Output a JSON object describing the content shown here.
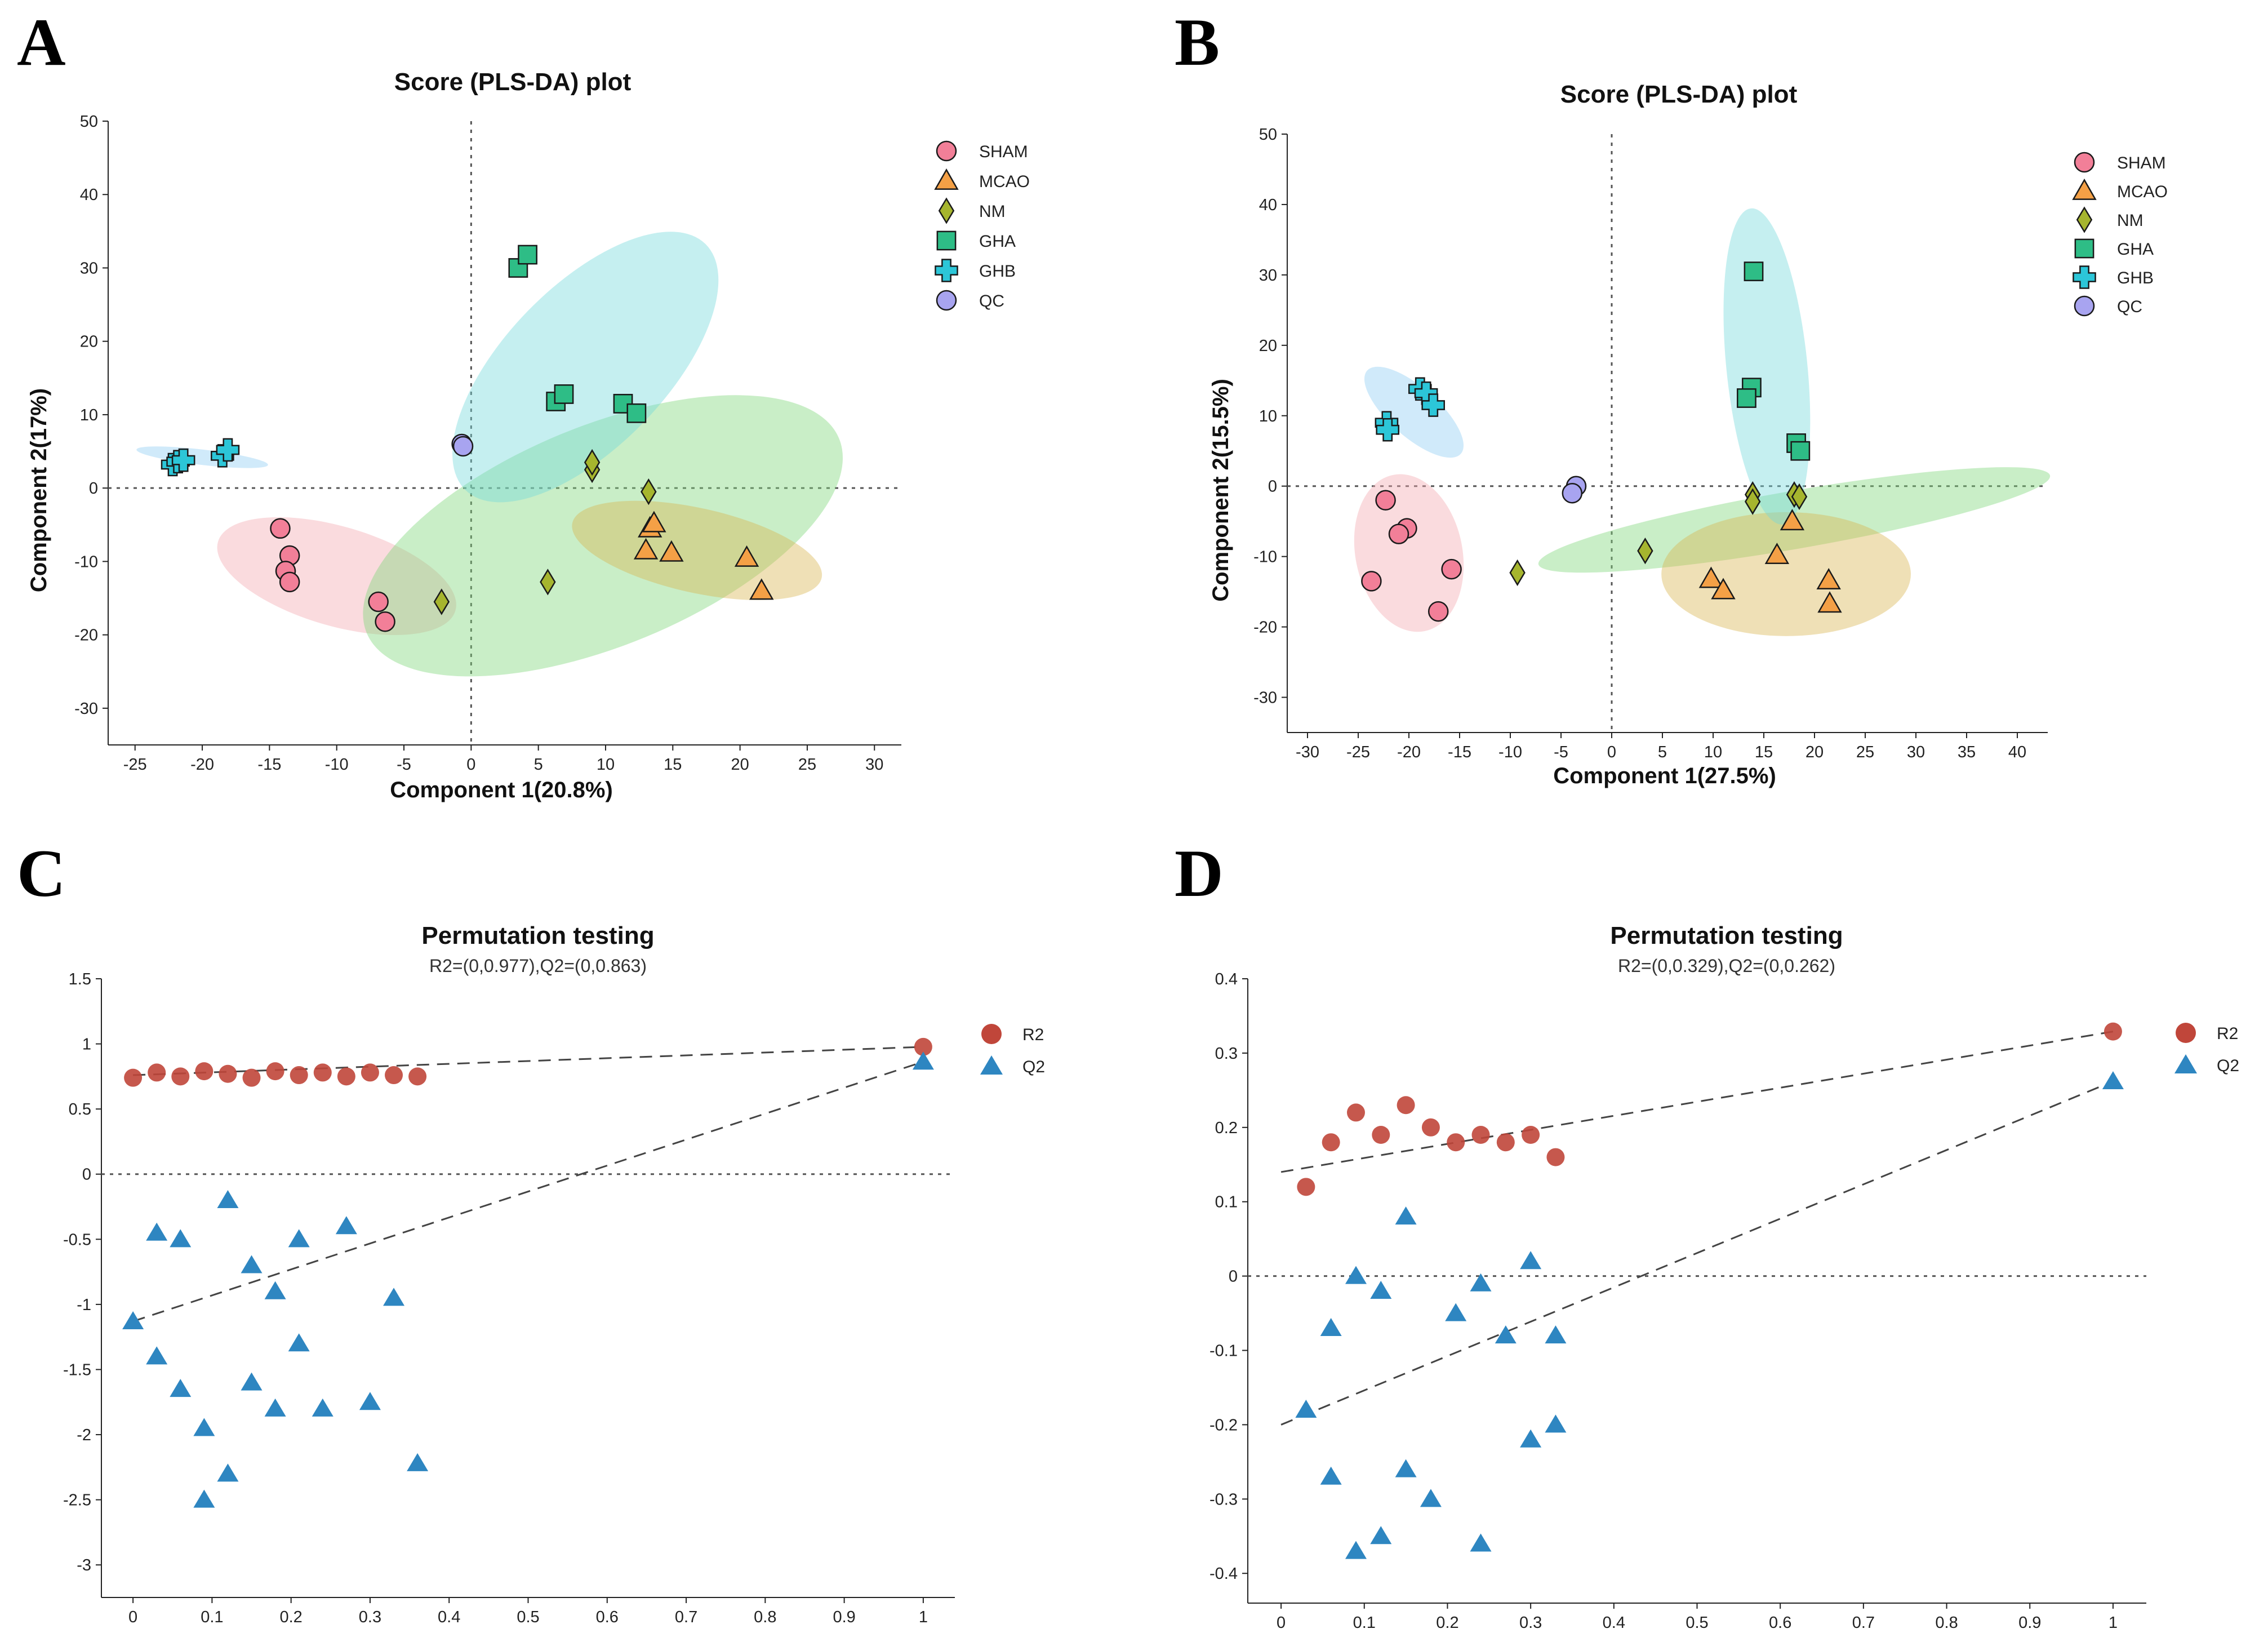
{
  "panels": {
    "A": "A",
    "B": "B",
    "C": "C",
    "D": "D"
  },
  "colors": {
    "SHAM": "#f27f98",
    "MCAO": "#f4a046",
    "NM": "#a6b52e",
    "GHA": "#2ebd86",
    "GHB": "#2cc6d8",
    "QC": "#a8a4f0",
    "ellipse_SHAM": "#f4a9b1",
    "ellipse_MCAO": "#d9b652",
    "ellipse_NM": "#7fd67a",
    "ellipse_GHA": "#74d8dc",
    "ellipse_GHB": "#8fcdf2",
    "R2": "#c0463a",
    "Q2": "#2e86c1"
  },
  "chart_data": [
    {
      "id": "A",
      "type": "scatter",
      "title": "Score (PLS-DA) plot",
      "xlabel": "Component 1(20.8%)",
      "ylabel": "Component 2(17%)",
      "xlim": [
        -27,
        32
      ],
      "ylim": [
        -35,
        50
      ],
      "xticks": [
        -25,
        -20,
        -15,
        -10,
        -5,
        0,
        5,
        10,
        15,
        20,
        25,
        30
      ],
      "yticks": [
        -30,
        -20,
        -10,
        0,
        10,
        20,
        30,
        40,
        50
      ],
      "legend": [
        "SHAM",
        "MCAO",
        "NM",
        "GHA",
        "GHB",
        "QC"
      ],
      "ellipses": [
        {
          "group": "SHAM",
          "cx": -10.0,
          "cy": -12.0,
          "rx": 10.0,
          "ry": 5.5,
          "angle": -28
        },
        {
          "group": "NM",
          "cx": 9.8,
          "cy": -6.5,
          "rx": 22.0,
          "ry": 11.0,
          "angle": 37
        },
        {
          "group": "MCAO",
          "cx": 16.8,
          "cy": -8.5,
          "rx": 10.0,
          "ry": 5.0,
          "angle": -22
        },
        {
          "group": "GHA",
          "cx": 8.5,
          "cy": 16.5,
          "rx": 19.0,
          "ry": 6.5,
          "angle": 62
        },
        {
          "group": "GHB",
          "cx": -20.0,
          "cy": 4.2,
          "rx": 5.0,
          "ry": 1.0,
          "angle": -12
        }
      ],
      "series": [
        {
          "name": "SHAM",
          "marker": "circle",
          "points": [
            [
              -14.2,
              -5.5
            ],
            [
              -13.5,
              -9.2
            ],
            [
              -13.8,
              -11.3
            ],
            [
              -13.5,
              -12.8
            ],
            [
              -6.9,
              -15.5
            ],
            [
              -6.4,
              -18.2
            ]
          ]
        },
        {
          "name": "MCAO",
          "marker": "triangle",
          "points": [
            [
              13.3,
              -5.5
            ],
            [
              13.6,
              -4.8
            ],
            [
              13.0,
              -8.5
            ],
            [
              14.9,
              -8.8
            ],
            [
              20.5,
              -9.5
            ],
            [
              21.6,
              -14.0
            ]
          ]
        },
        {
          "name": "NM",
          "marker": "diamond",
          "points": [
            [
              -2.2,
              -15.5
            ],
            [
              5.7,
              -12.8
            ],
            [
              9.0,
              2.5
            ],
            [
              9.0,
              3.5
            ],
            [
              13.2,
              -0.5
            ]
          ]
        },
        {
          "name": "GHA",
          "marker": "square",
          "points": [
            [
              3.5,
              30.0
            ],
            [
              4.2,
              31.8
            ],
            [
              6.3,
              11.8
            ],
            [
              6.9,
              12.8
            ],
            [
              11.3,
              11.5
            ],
            [
              12.3,
              10.2
            ]
          ]
        },
        {
          "name": "GHB",
          "marker": "cross",
          "points": [
            [
              -22.2,
              3.2
            ],
            [
              -21.8,
              3.6
            ],
            [
              -21.4,
              3.8
            ],
            [
              -18.5,
              4.4
            ],
            [
              -18.1,
              5.2
            ]
          ]
        },
        {
          "name": "QC",
          "marker": "circle",
          "points": [
            [
              -0.7,
              6.0
            ],
            [
              -0.6,
              5.7
            ]
          ]
        }
      ]
    },
    {
      "id": "B",
      "type": "scatter",
      "title": "Score (PLS-DA) plot",
      "xlabel": "Component 1(27.5%)",
      "ylabel": "Component 2(15.5%)",
      "xlim": [
        -32,
        43
      ],
      "ylim": [
        -35,
        50
      ],
      "xticks": [
        -30,
        -25,
        -20,
        -15,
        -10,
        -5,
        0,
        5,
        10,
        15,
        20,
        25,
        30,
        35,
        40
      ],
      "yticks": [
        -30,
        -20,
        -10,
        0,
        10,
        20,
        30,
        40,
        50
      ],
      "legend": [
        "SHAM",
        "MCAO",
        "NM",
        "GHA",
        "GHB",
        "QC"
      ],
      "ellipses": [
        {
          "group": "SHAM",
          "cx": -20.0,
          "cy": -9.5,
          "rx": 11.2,
          "ry": 5.3,
          "angle": -82
        },
        {
          "group": "NM",
          "cx": 18.0,
          "cy": -4.8,
          "rx": 26.0,
          "ry": 4.0,
          "angle": 14
        },
        {
          "group": "MCAO",
          "cx": 17.2,
          "cy": -12.5,
          "rx": 12.3,
          "ry": 8.8,
          "angle": 0
        },
        {
          "group": "GHA",
          "cx": 15.3,
          "cy": 17.0,
          "rx": 22.5,
          "ry": 4.0,
          "angle": -86
        },
        {
          "group": "GHB",
          "cx": -19.5,
          "cy": 10.5,
          "rx": 7.5,
          "ry": 2.7,
          "angle": -52
        }
      ],
      "series": [
        {
          "name": "SHAM",
          "marker": "circle",
          "points": [
            [
              -22.3,
              -2.0
            ],
            [
              -20.2,
              -6.0
            ],
            [
              -21.0,
              -6.8
            ],
            [
              -15.8,
              -11.8
            ],
            [
              -23.7,
              -13.5
            ],
            [
              -17.1,
              -17.8
            ]
          ]
        },
        {
          "name": "MCAO",
          "marker": "triangle",
          "points": [
            [
              17.8,
              -5.0
            ],
            [
              16.3,
              -9.8
            ],
            [
              9.8,
              -13.2
            ],
            [
              11.0,
              -14.8
            ],
            [
              21.4,
              -13.4
            ],
            [
              21.5,
              -16.7
            ]
          ]
        },
        {
          "name": "NM",
          "marker": "diamond",
          "points": [
            [
              -9.3,
              -12.3
            ],
            [
              3.3,
              -9.2
            ],
            [
              13.9,
              -1.2
            ],
            [
              13.9,
              -2.2
            ],
            [
              18.0,
              -1.2
            ],
            [
              18.5,
              -1.5
            ]
          ]
        },
        {
          "name": "GHA",
          "marker": "square",
          "points": [
            [
              14.0,
              30.5
            ],
            [
              13.8,
              14.0
            ],
            [
              13.3,
              12.5
            ],
            [
              18.2,
              6.1
            ],
            [
              18.6,
              5.0
            ]
          ]
        },
        {
          "name": "GHB",
          "marker": "cross",
          "points": [
            [
              -18.9,
              13.8
            ],
            [
              -18.3,
              13.2
            ],
            [
              -17.6,
              11.5
            ],
            [
              -22.2,
              9.0
            ],
            [
              -22.1,
              8.0
            ]
          ]
        },
        {
          "name": "QC",
          "marker": "circle",
          "points": [
            [
              -3.5,
              0.0
            ],
            [
              -3.9,
              -1.0
            ]
          ]
        }
      ]
    },
    {
      "id": "C",
      "type": "scatter",
      "title": "Permutation testing",
      "subtitle": "R2=(0,0.977),Q2=(0,0.863)",
      "xlim": [
        -0.04,
        1.04
      ],
      "ylim": [
        -3.25,
        1.5
      ],
      "xticks": [
        0,
        0.1,
        0.2,
        0.3,
        0.4,
        0.5,
        0.6,
        0.7,
        0.8,
        0.9,
        1
      ],
      "yticks": [
        -3,
        -2.5,
        -2,
        -1.5,
        -1,
        -0.5,
        0,
        0.5,
        1,
        1.5
      ],
      "legend": [
        "R2",
        "Q2"
      ],
      "reference_y": 0,
      "regression_lines": [
        {
          "name": "R2",
          "intercept": 0.76,
          "end": [
            1,
            0.977
          ]
        },
        {
          "name": "Q2",
          "intercept": -1.13,
          "end": [
            1,
            0.863
          ]
        }
      ],
      "series": [
        {
          "name": "R2",
          "marker": "circle",
          "points": [
            [
              0,
              0.74
            ],
            [
              0.03,
              0.78
            ],
            [
              0.06,
              0.75
            ],
            [
              0.09,
              0.79
            ],
            [
              0.12,
              0.77
            ],
            [
              0.15,
              0.74
            ],
            [
              0.18,
              0.79
            ],
            [
              0.21,
              0.76
            ],
            [
              0.24,
              0.78
            ],
            [
              0.27,
              0.75
            ],
            [
              0.3,
              0.78
            ],
            [
              0.33,
              0.76
            ],
            [
              0.36,
              0.75
            ],
            [
              1,
              0.977
            ]
          ]
        },
        {
          "name": "Q2",
          "marker": "triangle",
          "points": [
            [
              0,
              -1.13
            ],
            [
              0.03,
              -0.45
            ],
            [
              0.03,
              -1.4
            ],
            [
              0.06,
              -0.5
            ],
            [
              0.06,
              -1.65
            ],
            [
              0.09,
              -1.95
            ],
            [
              0.09,
              -2.5
            ],
            [
              0.12,
              -0.2
            ],
            [
              0.12,
              -2.3
            ],
            [
              0.15,
              -0.7
            ],
            [
              0.15,
              -1.6
            ],
            [
              0.18,
              -0.9
            ],
            [
              0.18,
              -1.8
            ],
            [
              0.21,
              -0.5
            ],
            [
              0.21,
              -1.3
            ],
            [
              0.24,
              -1.8
            ],
            [
              0.27,
              -0.4
            ],
            [
              0.3,
              -1.75
            ],
            [
              0.33,
              -0.95
            ],
            [
              0.36,
              -2.22
            ],
            [
              1,
              0.863
            ]
          ]
        }
      ]
    },
    {
      "id": "D",
      "type": "scatter",
      "title": "Permutation testing",
      "subtitle": "R2=(0,0.329),Q2=(0,0.262)",
      "xlim": [
        -0.04,
        1.04
      ],
      "ylim": [
        -0.44,
        0.4
      ],
      "xticks": [
        0,
        0.1,
        0.2,
        0.3,
        0.4,
        0.5,
        0.6,
        0.7,
        0.8,
        0.9,
        1
      ],
      "yticks": [
        -0.4,
        -0.3,
        -0.2,
        -0.1,
        0,
        0.1,
        0.2,
        0.3,
        0.4
      ],
      "legend": [
        "R2",
        "Q2"
      ],
      "reference_y": 0,
      "regression_lines": [
        {
          "name": "R2",
          "intercept": 0.14,
          "end": [
            1,
            0.329
          ]
        },
        {
          "name": "Q2",
          "intercept": -0.2,
          "end": [
            1,
            0.262
          ]
        }
      ],
      "series": [
        {
          "name": "R2",
          "marker": "circle",
          "points": [
            [
              0.03,
              0.12
            ],
            [
              0.06,
              0.18
            ],
            [
              0.09,
              0.22
            ],
            [
              0.12,
              0.19
            ],
            [
              0.15,
              0.23
            ],
            [
              0.18,
              0.2
            ],
            [
              0.21,
              0.18
            ],
            [
              0.24,
              0.19
            ],
            [
              0.27,
              0.18
            ],
            [
              0.3,
              0.19
            ],
            [
              0.33,
              0.16
            ],
            [
              1,
              0.329
            ]
          ]
        },
        {
          "name": "Q2",
          "marker": "triangle",
          "points": [
            [
              0.03,
              -0.18
            ],
            [
              0.06,
              -0.07
            ],
            [
              0.06,
              -0.27
            ],
            [
              0.09,
              0.0
            ],
            [
              0.09,
              -0.37
            ],
            [
              0.12,
              -0.02
            ],
            [
              0.12,
              -0.35
            ],
            [
              0.15,
              0.08
            ],
            [
              0.15,
              -0.26
            ],
            [
              0.18,
              -0.3
            ],
            [
              0.21,
              -0.05
            ],
            [
              0.24,
              -0.01
            ],
            [
              0.24,
              -0.36
            ],
            [
              0.27,
              -0.08
            ],
            [
              0.3,
              0.02
            ],
            [
              0.3,
              -0.22
            ],
            [
              0.33,
              -0.08
            ],
            [
              0.33,
              -0.2
            ],
            [
              1,
              0.262
            ]
          ]
        }
      ]
    }
  ]
}
